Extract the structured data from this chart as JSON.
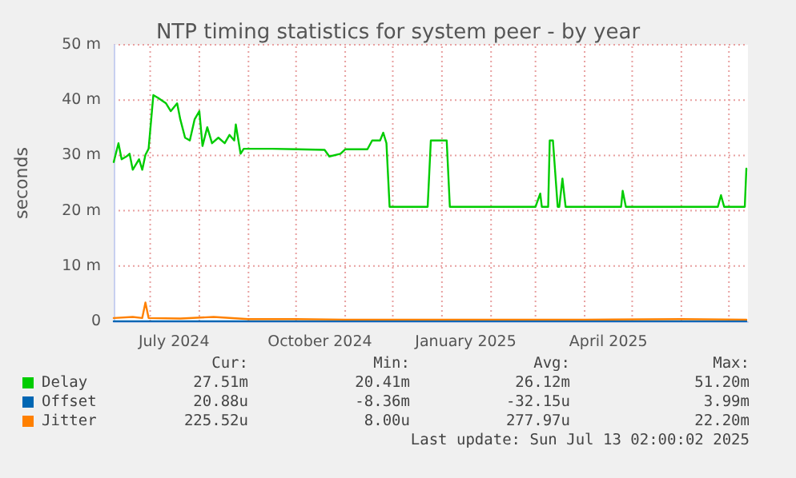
{
  "chart_data": {
    "type": "line",
    "title": "NTP timing statistics for system peer - by year",
    "ylabel": "seconds",
    "xlim": [
      "2024-06-08",
      "2025-07-13"
    ],
    "xticks": [
      {
        "value": "2024-07-01",
        "label": null
      },
      {
        "value": "2024-07-16",
        "label": "July 2024"
      },
      {
        "value": "2024-08-01",
        "label": null
      },
      {
        "value": "2024-09-01",
        "label": null
      },
      {
        "value": "2024-10-01",
        "label": null
      },
      {
        "value": "2024-10-16",
        "label": "October 2024"
      },
      {
        "value": "2024-11-01",
        "label": null
      },
      {
        "value": "2024-12-01",
        "label": null
      },
      {
        "value": "2025-01-01",
        "label": null
      },
      {
        "value": "2025-01-16",
        "label": "January 2025"
      },
      {
        "value": "2025-02-01",
        "label": null
      },
      {
        "value": "2025-03-01",
        "label": null
      },
      {
        "value": "2025-04-01",
        "label": null
      },
      {
        "value": "2025-04-16",
        "label": "April 2025"
      },
      {
        "value": "2025-05-01",
        "label": null
      },
      {
        "value": "2025-06-01",
        "label": null
      },
      {
        "value": "2025-07-01",
        "label": null
      }
    ],
    "ylim": [
      0,
      50
    ],
    "yticks": [
      0,
      {
        "value": 10,
        "label": "10 m"
      },
      {
        "value": 20,
        "label": "20 m"
      },
      {
        "value": 30,
        "label": "30 m"
      },
      {
        "value": 40,
        "label": "40 m"
      },
      {
        "value": 50,
        "label": "50 m"
      }
    ],
    "grid": true,
    "legend": "bottom",
    "marker": "none",
    "line_style": "solid",
    "series": [
      {
        "name": "Delay",
        "color": "#00cc00",
        "x": [
          "2024-06-08",
          "2024-06-11",
          "2024-06-13",
          "2024-06-16",
          "2024-06-18",
          "2024-06-20",
          "2024-06-24",
          "2024-06-26",
          "2024-06-28",
          "2024-06-30",
          "2024-07-03",
          "2024-07-06",
          "2024-07-11",
          "2024-07-14",
          "2024-07-18",
          "2024-07-20",
          "2024-07-23",
          "2024-07-26",
          "2024-07-29",
          "2024-08-01",
          "2024-08-03",
          "2024-08-06",
          "2024-08-09",
          "2024-08-13",
          "2024-08-17",
          "2024-08-20",
          "2024-08-23",
          "2024-08-24",
          "2024-08-27",
          "2024-08-29",
          "2024-09-16",
          "2024-10-02",
          "2024-10-19",
          "2024-10-22",
          "2024-10-29",
          "2024-11-01",
          "2024-11-15",
          "2024-11-18",
          "2024-11-23",
          "2024-11-25",
          "2024-11-27",
          "2024-11-29",
          "2024-12-23",
          "2024-12-25",
          "2025-01-04",
          "2025-01-06",
          "2025-03-01",
          "2025-03-04",
          "2025-03-05",
          "2025-03-09",
          "2025-03-10",
          "2025-03-12",
          "2025-03-15",
          "2025-03-16",
          "2025-03-18",
          "2025-03-20",
          "2025-04-24",
          "2025-04-25",
          "2025-04-27",
          "2025-06-24",
          "2025-06-26",
          "2025-06-28",
          "2025-07-11",
          "2025-07-12"
        ],
        "values": [
          28.8,
          32.2,
          29.3,
          29.8,
          30.3,
          27.4,
          29.3,
          27.4,
          30.1,
          31.2,
          40.9,
          40.4,
          39.4,
          38.0,
          39.4,
          36.5,
          33.2,
          32.7,
          36.5,
          38.0,
          31.7,
          35.1,
          32.2,
          33.2,
          32.2,
          33.7,
          32.7,
          35.6,
          30.3,
          31.2,
          31.2,
          31.1,
          31.0,
          29.8,
          30.3,
          31.1,
          31.1,
          32.7,
          32.7,
          34.1,
          32.2,
          20.7,
          20.7,
          32.7,
          32.7,
          20.7,
          20.7,
          23.1,
          20.7,
          20.7,
          32.7,
          32.7,
          20.7,
          20.7,
          25.8,
          20.7,
          20.7,
          23.6,
          20.7,
          20.7,
          22.8,
          20.7,
          20.7,
          27.6
        ]
      },
      {
        "name": "Offset",
        "color": "#0066b3",
        "x": [
          "2024-06-08",
          "2024-08-01",
          "2024-11-05",
          "2025-04-01",
          "2025-07-12"
        ],
        "values": [
          0,
          0,
          0,
          0,
          0
        ]
      },
      {
        "name": "Jitter",
        "color": "#ff8000",
        "x": [
          "2024-06-08",
          "2024-06-20",
          "2024-06-26",
          "2024-06-28",
          "2024-06-30",
          "2024-07-20",
          "2024-08-10",
          "2024-09-01",
          "2024-10-01",
          "2024-11-01",
          "2025-01-01",
          "2025-04-01",
          "2025-06-01",
          "2025-07-12"
        ],
        "values": [
          0.6,
          0.8,
          0.6,
          3.4,
          0.6,
          0.5,
          0.8,
          0.4,
          0.4,
          0.3,
          0.3,
          0.3,
          0.4,
          0.3
        ]
      }
    ],
    "annotations": [
      "Cur:",
      "Min:",
      "Avg:",
      "Max:",
      "27.51m",
      "20.41m",
      "26.12m",
      "51.20m",
      "20.88u",
      "-8.36m",
      "-32.15u",
      "3.99m",
      "225.52u",
      "8.00u",
      "277.97u",
      "22.20m",
      "Last update: Sun Jul 13 02:00:02 2025"
    ]
  }
}
